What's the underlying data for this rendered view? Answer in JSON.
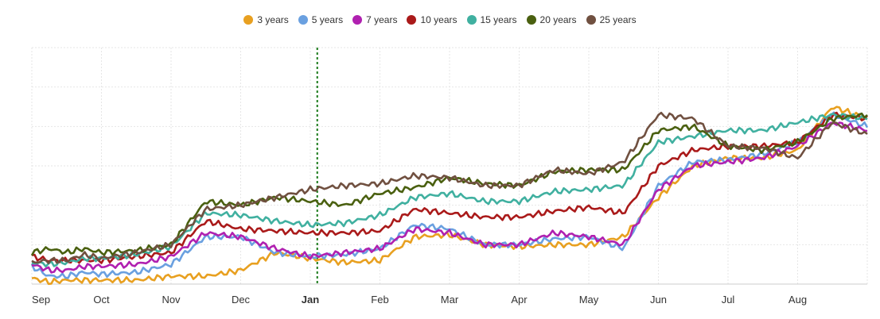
{
  "chart_data": {
    "type": "line",
    "x_ticks": [
      "Sep",
      "Oct",
      "Nov",
      "Dec",
      "Jan",
      "Feb",
      "Mar",
      "Apr",
      "May",
      "Jun",
      "Jul",
      "Aug"
    ],
    "highlight_tick": "Jan",
    "ylim": [
      0,
      6
    ],
    "grid": true,
    "legend_position": "top-center",
    "marker": {
      "at": 4.1,
      "style": "dotted-vertical",
      "color": "#1a7a1a"
    },
    "x_positions": [
      0,
      0.25,
      0.5,
      0.75,
      1,
      1.5,
      2,
      2.5,
      3,
      3.5,
      4,
      4.5,
      5,
      5.5,
      6,
      6.5,
      7,
      7.5,
      8,
      8.5,
      9,
      9.5,
      10,
      10.5,
      11,
      11.5,
      12
    ],
    "series": [
      {
        "name": "3 years",
        "color": "#e8a020",
        "values": [
          0.15,
          0.05,
          0.1,
          0.1,
          0.1,
          0.1,
          0.2,
          0.2,
          0.35,
          0.8,
          0.65,
          0.55,
          0.6,
          1.2,
          1.25,
          1.0,
          0.95,
          1.0,
          1.0,
          1.2,
          2.2,
          3.0,
          3.2,
          3.2,
          3.4,
          4.5,
          4.2
        ]
      },
      {
        "name": "5 years",
        "color": "#6aa0e0",
        "values": [
          0.45,
          0.2,
          0.2,
          0.3,
          0.25,
          0.3,
          0.5,
          1.2,
          1.2,
          0.8,
          0.7,
          0.75,
          0.9,
          1.5,
          1.4,
          1.0,
          1.0,
          1.15,
          1.2,
          0.9,
          2.5,
          3.1,
          3.15,
          3.3,
          3.6,
          4.3,
          4.0
        ]
      },
      {
        "name": "7 years",
        "color": "#b020b0",
        "values": [
          0.5,
          0.35,
          0.35,
          0.45,
          0.45,
          0.5,
          0.7,
          1.3,
          1.2,
          0.9,
          0.7,
          0.8,
          0.9,
          1.4,
          1.3,
          1.0,
          1.0,
          1.3,
          1.2,
          1.0,
          2.4,
          3.0,
          3.1,
          3.2,
          3.5,
          4.1,
          3.9
        ]
      },
      {
        "name": "10 years",
        "color": "#aa1a1a",
        "values": [
          0.7,
          0.6,
          0.6,
          0.6,
          0.6,
          0.7,
          0.8,
          1.6,
          1.4,
          1.35,
          1.3,
          1.3,
          1.35,
          1.9,
          1.8,
          1.7,
          1.7,
          1.85,
          1.95,
          1.8,
          3.0,
          3.4,
          3.5,
          3.5,
          3.6,
          4.3,
          4.2
        ]
      },
      {
        "name": "15 years",
        "color": "#40b0a0",
        "values": [
          0.55,
          0.5,
          0.55,
          0.65,
          0.65,
          0.75,
          0.95,
          1.8,
          1.75,
          1.6,
          1.5,
          1.55,
          1.75,
          2.2,
          2.3,
          2.1,
          2.1,
          2.35,
          2.4,
          2.5,
          3.6,
          3.75,
          3.9,
          3.9,
          4.1,
          4.3,
          4.2
        ]
      },
      {
        "name": "20 years",
        "color": "#4a6010",
        "values": [
          0.8,
          0.9,
          0.8,
          0.9,
          0.8,
          0.85,
          1.0,
          2.1,
          2.0,
          2.2,
          2.1,
          2.0,
          2.3,
          2.45,
          2.7,
          2.55,
          2.5,
          2.85,
          2.9,
          2.9,
          3.9,
          4.0,
          3.5,
          3.4,
          3.6,
          4.2,
          4.3
        ]
      },
      {
        "name": "25 years",
        "color": "#705040",
        "values": [
          0.55,
          0.6,
          0.6,
          0.75,
          0.65,
          0.8,
          1.0,
          1.9,
          2.0,
          2.2,
          2.4,
          2.5,
          2.55,
          2.75,
          2.7,
          2.5,
          2.5,
          2.9,
          2.8,
          3.1,
          4.3,
          4.2,
          3.5,
          3.45,
          3.2,
          4.1,
          3.8
        ]
      }
    ]
  }
}
